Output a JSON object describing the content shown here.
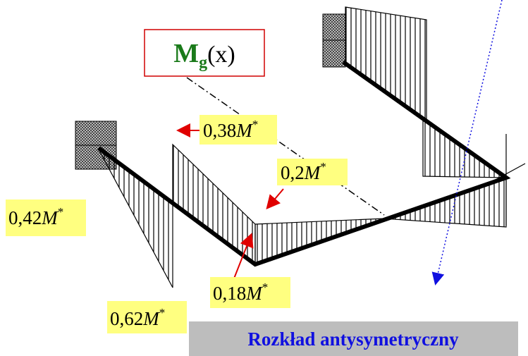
{
  "title": {
    "main": "M",
    "sub": "g",
    "arg": "(x)"
  },
  "labels": [
    {
      "coef": "0,38",
      "symbol": "M",
      "sup": "*"
    },
    {
      "coef": "0,2",
      "symbol": "M",
      "sup": "*"
    },
    {
      "coef": "0,42",
      "symbol": "M",
      "sup": "*"
    },
    {
      "coef": "0,18",
      "symbol": "M",
      "sup": "*"
    },
    {
      "coef": "0,62",
      "symbol": "M",
      "sup": "*"
    }
  ],
  "caption": "Rozkład antysymetryczny"
}
